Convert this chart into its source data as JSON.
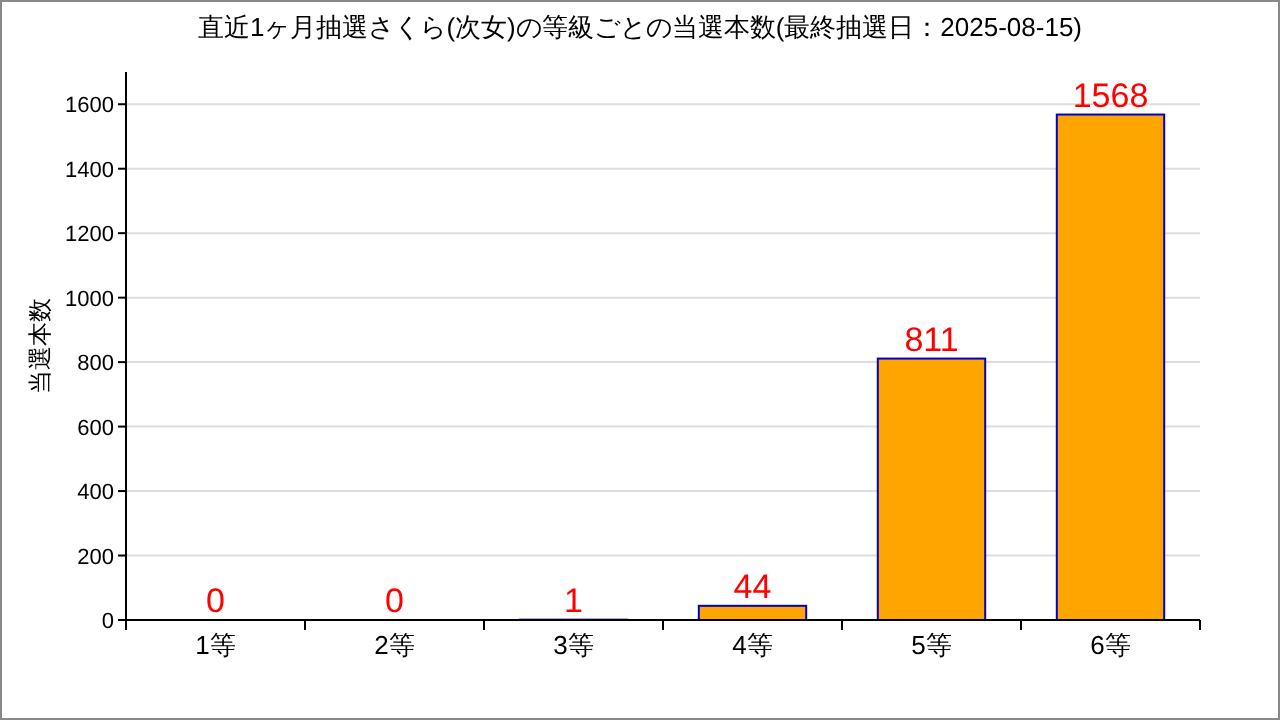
{
  "chart_data": {
    "type": "bar",
    "title": "直近1ヶ月抽選さくら(次女)の等級ごとの当選本数(最終抽選日：2025-08-15)",
    "ylabel": "当選本数",
    "categories": [
      "1等",
      "2等",
      "3等",
      "4等",
      "5等",
      "6等"
    ],
    "values": [
      0,
      0,
      1,
      44,
      811,
      1568
    ],
    "color": "#ffa500",
    "ylim": [
      0,
      1700
    ],
    "yticks": [
      0,
      200,
      400,
      600,
      800,
      1000,
      1200,
      1400,
      1600
    ],
    "grid": "y",
    "data_labels": true
  }
}
